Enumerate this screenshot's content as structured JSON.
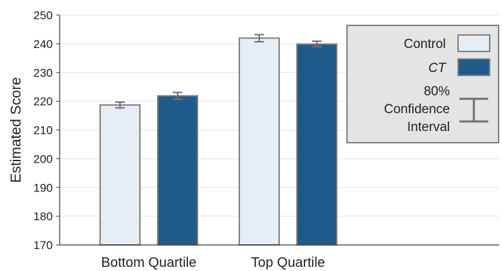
{
  "chart_data": {
    "type": "bar",
    "categories": [
      "Bottom Quartile",
      "Top Quartile"
    ],
    "series": [
      {
        "name": "Control",
        "values": [
          218.7,
          242.0
        ],
        "ci": [
          [
            217.7,
            219.7
          ],
          [
            240.7,
            243.2
          ]
        ],
        "color": "#e6edf5",
        "italic": false
      },
      {
        "name": "CT",
        "values": [
          221.9,
          239.9
        ],
        "ci": [
          [
            220.7,
            223.1
          ],
          [
            239.0,
            240.9
          ]
        ],
        "color": "#1f5a8a",
        "italic": true
      }
    ],
    "xlabel": "",
    "ylabel": "Estimated Score",
    "ylim": [
      170,
      250
    ],
    "yticks": [
      170,
      180,
      190,
      200,
      210,
      220,
      230,
      240,
      250
    ],
    "grid": true,
    "legend": {
      "placement": "top-right",
      "ci_label_lines": [
        "80%",
        "Confidence",
        "Interval"
      ]
    },
    "colors": {
      "bar_outline": "#7f7f7f",
      "error_bar": "#707070",
      "legend_bg": "#e4e4e4",
      "legend_border": "#808080",
      "grid": "#e2e2e2",
      "axis": "#333333"
    }
  }
}
